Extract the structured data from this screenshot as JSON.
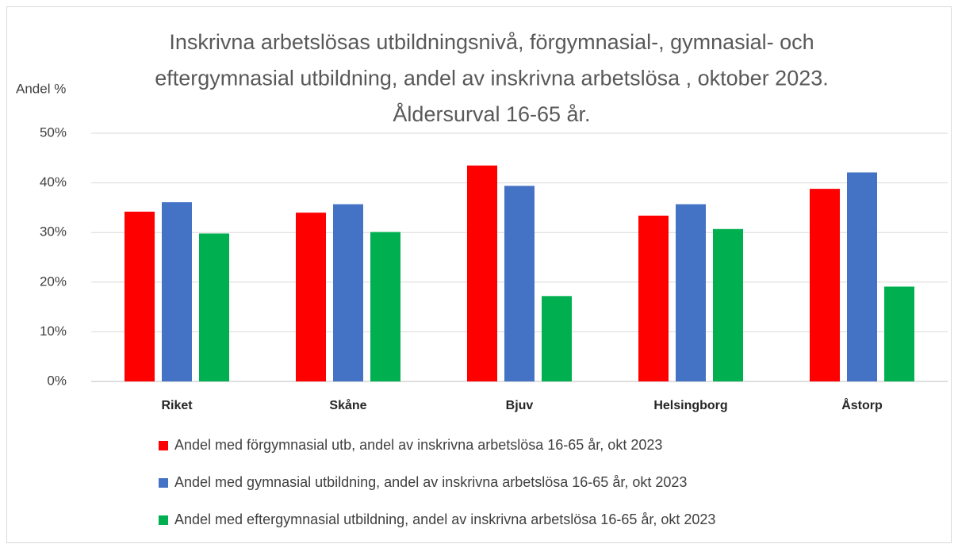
{
  "chart_data": {
    "type": "bar",
    "title": [
      "Inskrivna arbetslösas utbildningsnivå, förgymnasial-, gymnasial- och",
      "eftergymnasial utbildning, andel av inskrivna arbetslösa , oktober 2023.",
      "Åldersurval 16-65 år."
    ],
    "y_label": "Andel %",
    "categories": [
      "Riket",
      "Skåne",
      "Bjuv",
      "Helsingborg",
      "Åstorp"
    ],
    "series": [
      {
        "name": "Andel med förgymnasial utb, andel av inskrivna arbetslösa 16-65 år, okt 2023",
        "color": "#ff0000",
        "values": [
          34.2,
          34.0,
          43.5,
          33.4,
          38.8
        ]
      },
      {
        "name": "Andel med gymnasial utbildning, andel av inskrivna arbetslösa 16-65 år, okt 2023",
        "color": "#4472c4",
        "values": [
          36.1,
          35.7,
          39.4,
          35.7,
          42.1
        ]
      },
      {
        "name": "Andel med eftergymnasial utbildning, andel av inskrivna arbetslösa 16-65 år, okt 2023",
        "color": "#00b050",
        "values": [
          29.8,
          30.1,
          17.2,
          30.7,
          19.1
        ]
      }
    ],
    "ylim": [
      0,
      50
    ],
    "yticks": [
      {
        "value": 0,
        "label": "0%"
      },
      {
        "value": 10,
        "label": "10%"
      },
      {
        "value": 20,
        "label": "20%"
      },
      {
        "value": 30,
        "label": "30%"
      },
      {
        "value": 40,
        "label": "40%"
      },
      {
        "value": 50,
        "label": "50%"
      }
    ],
    "grid": true
  }
}
